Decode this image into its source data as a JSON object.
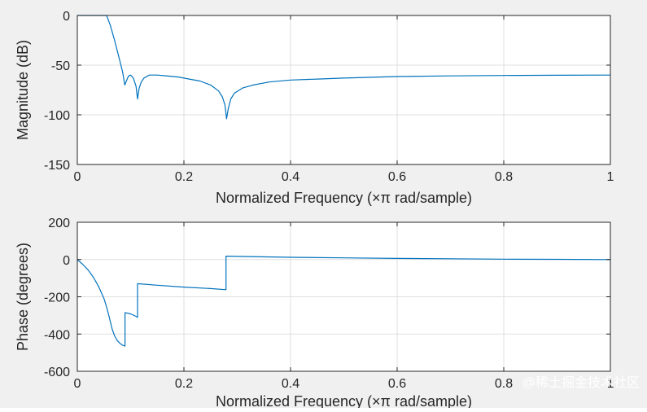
{
  "chart_data": [
    {
      "type": "line",
      "title": "",
      "xlabel": "Normalized Frequency  (×π rad/sample)",
      "ylabel": "Magnitude (dB)",
      "xlim": [
        0,
        1
      ],
      "ylim": [
        -150,
        0
      ],
      "xticks": [
        0,
        0.2,
        0.4,
        0.6,
        0.8,
        1
      ],
      "xtick_labels": [
        "0",
        "0.2",
        "0.4",
        "0.6",
        "0.8",
        "1"
      ],
      "yticks": [
        -150,
        -100,
        -50,
        0
      ],
      "ytick_labels": [
        "-150",
        "-100",
        "-50",
        "0"
      ],
      "grid": true,
      "color": "#0072bd",
      "series": [
        {
          "x": [
            0,
            0.04,
            0.055,
            0.062,
            0.07,
            0.078,
            0.085,
            0.089,
            0.092,
            0.096,
            0.1,
            0.105,
            0.11,
            0.113,
            0.116,
            0.12,
            0.125,
            0.135,
            0.15,
            0.17,
            0.19,
            0.21,
            0.23,
            0.25,
            0.265,
            0.272,
            0.277,
            0.28,
            0.283,
            0.288,
            0.295,
            0.31,
            0.33,
            0.36,
            0.4,
            0.45,
            0.5,
            0.6,
            0.7,
            0.8,
            0.9,
            1.0
          ],
          "y": [
            0,
            0,
            0,
            -10,
            -25,
            -42,
            -57,
            -70,
            -66,
            -61,
            -60,
            -63,
            -71,
            -84,
            -73,
            -67,
            -63,
            -60,
            -60,
            -61,
            -62,
            -64,
            -66,
            -70,
            -76,
            -82,
            -90,
            -104,
            -94,
            -84,
            -78,
            -73,
            -70,
            -67,
            -65,
            -64,
            -63,
            -61.5,
            -60.8,
            -60.4,
            -60.2,
            -60
          ]
        }
      ]
    },
    {
      "type": "line",
      "title": "",
      "xlabel": "Normalized Frequency  (×π rad/sample)",
      "ylabel": "Phase (degrees)",
      "xlim": [
        0,
        1
      ],
      "ylim": [
        -600,
        200
      ],
      "xticks": [
        0,
        0.2,
        0.4,
        0.6,
        0.8,
        1
      ],
      "xtick_labels": [
        "0",
        "0.2",
        "0.4",
        "0.6",
        "0.8",
        "1"
      ],
      "yticks": [
        -600,
        -400,
        -200,
        0,
        200
      ],
      "ytick_labels": [
        "-600",
        "-400",
        "-200",
        "0",
        "200"
      ],
      "grid": true,
      "color": "#0072bd",
      "series": [
        {
          "x": [
            0,
            0.01,
            0.02,
            0.03,
            0.04,
            0.05,
            0.055,
            0.06,
            0.065,
            0.07,
            0.075,
            0.08,
            0.085,
            0.0895,
            0.0895,
            0.1,
            0.11,
            0.113,
            0.113,
            0.115,
            0.15,
            0.2,
            0.25,
            0.279,
            0.279,
            0.3,
            0.4,
            0.5,
            0.6,
            0.7,
            0.8,
            0.9,
            1.0
          ],
          "y": [
            0,
            -25,
            -55,
            -95,
            -145,
            -210,
            -255,
            -310,
            -370,
            -410,
            -435,
            -450,
            -460,
            -465,
            -285,
            -292,
            -305,
            -310,
            -130,
            -130,
            -138,
            -148,
            -156,
            -162,
            18,
            17,
            12,
            9,
            6,
            4,
            2,
            1,
            0
          ]
        }
      ]
    }
  ],
  "watermark": "@稀土掘金技术社区"
}
